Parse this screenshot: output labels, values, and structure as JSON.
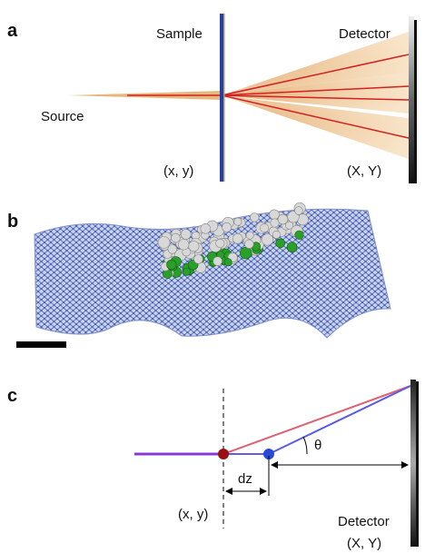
{
  "panel_a": {
    "label": "a",
    "sample": "Sample",
    "detector": "Detector",
    "source": "Source",
    "sample_coords": "(x, y)",
    "detector_coords": "(X, Y)"
  },
  "panel_b": {
    "label": "b"
  },
  "panel_c": {
    "label": "c",
    "dz": "dz",
    "theta": "θ",
    "sample_coords": "(x, y)",
    "detector": "Detector",
    "detector_coords": "(X, Y)"
  }
}
